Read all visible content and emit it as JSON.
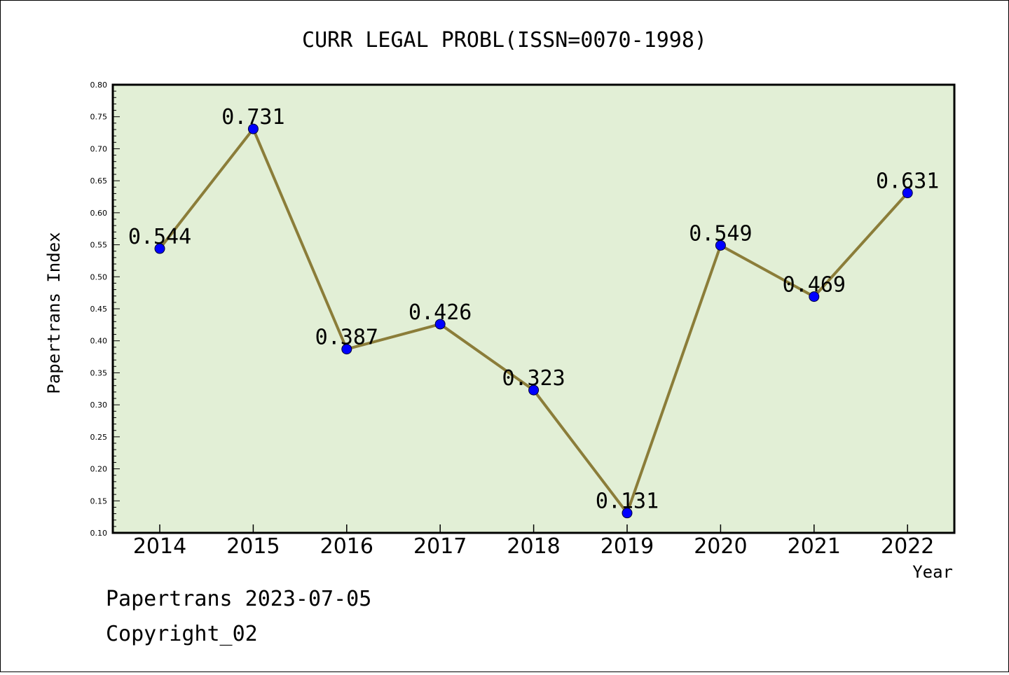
{
  "chart_data": {
    "type": "line",
    "title": "CURR LEGAL PROBL(ISSN=0070-1998)",
    "xlabel": "Year",
    "ylabel": "Papertrans Index",
    "categories": [
      "2014",
      "2015",
      "2016",
      "2017",
      "2018",
      "2019",
      "2020",
      "2021",
      "2022"
    ],
    "series": [
      {
        "values": [
          0.544,
          0.731,
          0.387,
          0.426,
          0.323,
          0.131,
          0.549,
          0.469,
          0.631
        ]
      }
    ],
    "data_labels": [
      "0.544",
      "0.731",
      "0.387",
      "0.426",
      "0.323",
      "0.131",
      "0.549",
      "0.469",
      "0.631"
    ],
    "ylim": [
      0.1,
      0.8
    ],
    "yticks": [
      "0.10",
      "0.15",
      "0.20",
      "0.25",
      "0.30",
      "0.35",
      "0.40",
      "0.45",
      "0.50",
      "0.55",
      "0.60",
      "0.65",
      "0.70",
      "0.75",
      "0.80"
    ],
    "grid": false,
    "legend": "none",
    "colors": {
      "plot_background": "#e2efd6",
      "line": "#8b7d39",
      "marker": "#0000ff"
    }
  },
  "footer": {
    "line1": "Papertrans 2023-07-05",
    "line2": "Copyright_02"
  }
}
